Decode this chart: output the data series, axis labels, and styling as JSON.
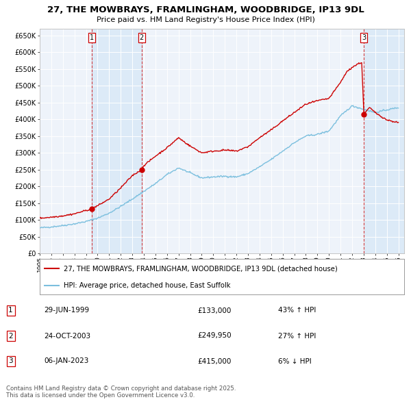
{
  "title": "27, THE MOWBRAYS, FRAMLINGHAM, WOODBRIDGE, IP13 9DL",
  "subtitle": "Price paid vs. HM Land Registry's House Price Index (HPI)",
  "ylim": [
    0,
    670000
  ],
  "yticks": [
    0,
    50000,
    100000,
    150000,
    200000,
    250000,
    300000,
    350000,
    400000,
    450000,
    500000,
    550000,
    600000,
    650000
  ],
  "xlim_start": 1995.0,
  "xlim_end": 2026.5,
  "sale_dates": [
    1999.49,
    2003.81,
    2023.02
  ],
  "sale_prices": [
    133000,
    249950,
    415000
  ],
  "sale_labels": [
    "1",
    "2",
    "3"
  ],
  "sale_label_dates_text": [
    "29-JUN-1999",
    "24-OCT-2003",
    "06-JAN-2023"
  ],
  "sale_label_prices_text": [
    "£133,000",
    "£249,950",
    "£415,000"
  ],
  "sale_label_hpi_text": [
    "43% ↑ HPI",
    "27% ↑ HPI",
    "6% ↓ HPI"
  ],
  "hpi_color": "#7bbfde",
  "sale_color": "#cc0000",
  "dashed_color": "#cc0000",
  "shade_color": "#d0e4f5",
  "legend_label_sale": "27, THE MOWBRAYS, FRAMLINGHAM, WOODBRIDGE, IP13 9DL (detached house)",
  "legend_label_hpi": "HPI: Average price, detached house, East Suffolk",
  "footnote": "Contains HM Land Registry data © Crown copyright and database right 2025.\nThis data is licensed under the Open Government Licence v3.0.",
  "background_color": "#ffffff",
  "plot_background": "#eef3fa",
  "hpi_anchors_x": [
    1995.0,
    1996.0,
    1997.0,
    1998.0,
    1999.0,
    2000.0,
    2001.0,
    2002.0,
    2003.0,
    2004.0,
    2005.0,
    2006.0,
    2007.0,
    2008.0,
    2009.0,
    2010.0,
    2011.0,
    2012.0,
    2013.0,
    2014.0,
    2015.0,
    2016.0,
    2017.0,
    2018.0,
    2019.0,
    2020.0,
    2021.0,
    2022.0,
    2023.0,
    2024.0,
    2025.0,
    2026.0
  ],
  "hpi_anchors_y": [
    76000,
    79000,
    83000,
    88000,
    95000,
    105000,
    120000,
    140000,
    162000,
    185000,
    208000,
    235000,
    255000,
    240000,
    225000,
    228000,
    230000,
    228000,
    238000,
    258000,
    280000,
    305000,
    330000,
    350000,
    355000,
    365000,
    410000,
    440000,
    430000,
    420000,
    428000,
    435000
  ],
  "sale_anchors_x": [
    1995.0,
    1996.0,
    1997.0,
    1998.0,
    1999.0,
    1999.49,
    2000.0,
    2001.0,
    2002.0,
    2003.0,
    2003.81,
    2004.0,
    2005.0,
    2006.0,
    2007.0,
    2008.0,
    2009.0,
    2010.0,
    2011.0,
    2012.0,
    2013.0,
    2014.0,
    2015.0,
    2016.0,
    2017.0,
    2018.0,
    2019.0,
    2020.0,
    2021.0,
    2021.5,
    2022.0,
    2022.5,
    2022.83,
    2023.02,
    2023.5,
    2024.0,
    2025.0,
    2026.0
  ],
  "sale_anchors_y": [
    105000,
    108000,
    112000,
    118000,
    128000,
    133000,
    142000,
    162000,
    195000,
    232000,
    249950,
    262000,
    290000,
    315000,
    345000,
    320000,
    300000,
    305000,
    308000,
    305000,
    318000,
    345000,
    368000,
    395000,
    420000,
    445000,
    455000,
    462000,
    510000,
    540000,
    555000,
    565000,
    570000,
    415000,
    435000,
    420000,
    398000,
    390000
  ]
}
